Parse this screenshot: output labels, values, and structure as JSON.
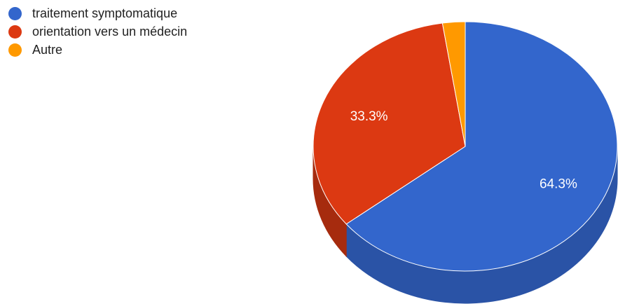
{
  "chart_data": {
    "type": "pie",
    "style": "3d",
    "legend_position": "top-left",
    "categories": [
      "traitement symptomatique",
      "orientation vers un médecin",
      "Autre"
    ],
    "values": [
      64.3,
      33.3,
      2.4
    ],
    "value_labels": [
      "64.3%",
      "33.3%",
      ""
    ],
    "colors": [
      "#3366cc",
      "#dc3912",
      "#ff9900"
    ],
    "side_colors": [
      "#2a53a6",
      "#a62b0e",
      "#c07300"
    ]
  },
  "legend": {
    "items": [
      {
        "label": "traitement symptomatique",
        "color": "#3366cc"
      },
      {
        "label": "orientation vers un médecin",
        "color": "#dc3912"
      },
      {
        "label": "Autre",
        "color": "#ff9900"
      }
    ]
  }
}
